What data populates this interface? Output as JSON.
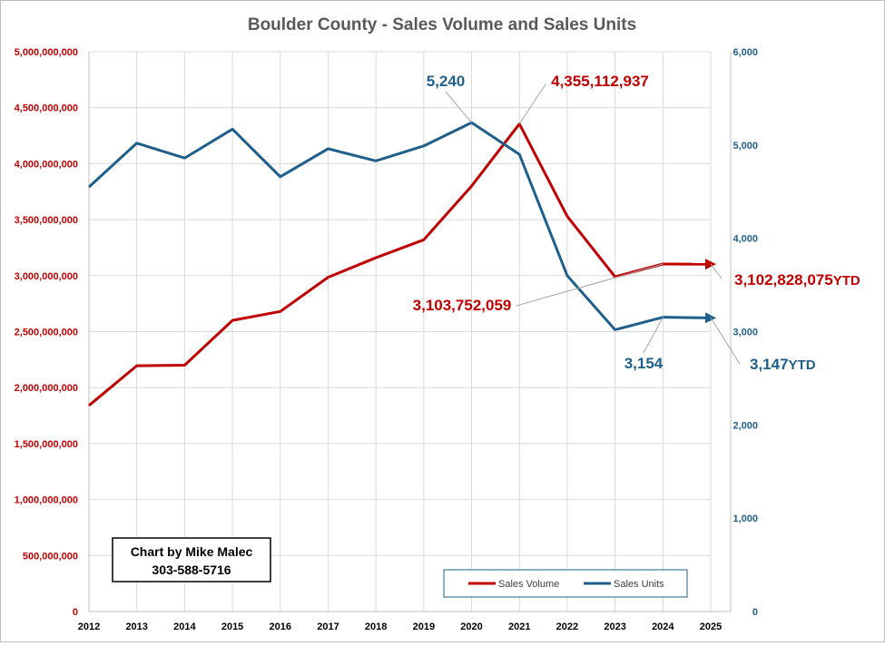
{
  "chart_data": {
    "type": "line",
    "title": "Boulder County - Sales Volume and Sales Units",
    "categories": [
      "2012",
      "2013",
      "2014",
      "2015",
      "2016",
      "2017",
      "2018",
      "2019",
      "2020",
      "2021",
      "2022",
      "2023",
      "2024",
      "2025"
    ],
    "left_axis": {
      "ylim": [
        0,
        5000000000
      ],
      "ticks": [
        0,
        500000000,
        1000000000,
        1500000000,
        2000000000,
        2500000000,
        3000000000,
        3500000000,
        4000000000,
        4500000000,
        5000000000
      ],
      "tick_labels": [
        "0",
        "500,000,000",
        "1,000,000,000",
        "1,500,000,000",
        "2,000,000,000",
        "2,500,000,000",
        "3,000,000,000",
        "3,500,000,000",
        "4,000,000,000",
        "4,500,000,000",
        "5,000,000,000"
      ],
      "color": "#c00000"
    },
    "right_axis": {
      "ylim": [
        0,
        6000
      ],
      "ticks": [
        0,
        1000,
        2000,
        3000,
        4000,
        5000,
        6000
      ],
      "tick_labels": [
        "0",
        "1,000",
        "2,000",
        "3,000",
        "4,000",
        "5,000",
        "6,000"
      ],
      "color": "#1f5f8b"
    },
    "series": [
      {
        "name": "Sales Volume",
        "axis": "left",
        "color": "#c00000",
        "values": [
          1840000000,
          2195000000,
          2200000000,
          2600000000,
          2680000000,
          2985000000,
          3160000000,
          3320000000,
          3800000000,
          4355112937,
          3530000000,
          2990000000,
          3103752059,
          3102828075
        ]
      },
      {
        "name": "Sales Units",
        "axis": "right",
        "color": "#1f5f8b",
        "values": [
          4550,
          5020,
          4860,
          5170,
          4660,
          4960,
          4830,
          4990,
          5240,
          4900,
          3600,
          3020,
          3154,
          3147
        ]
      }
    ],
    "annotations": [
      {
        "text": "5,240",
        "series": "Sales Units",
        "index": 8,
        "color": "blue"
      },
      {
        "text": "4,355,112,937",
        "series": "Sales Volume",
        "index": 9,
        "color": "red"
      },
      {
        "text": "3,103,752,059",
        "series": "Sales Volume",
        "index": 12,
        "color": "red"
      },
      {
        "text": "3,154",
        "series": "Sales Units",
        "index": 12,
        "color": "blue"
      },
      {
        "text": "3,102,828,075",
        "suffix": "YTD",
        "series": "Sales Volume",
        "index": 13,
        "color": "red"
      },
      {
        "text": "3,147",
        "suffix": "YTD",
        "series": "Sales Units",
        "index": 13,
        "color": "blue"
      }
    ],
    "legend": {
      "placement": "bottom-right",
      "items": [
        "Sales Volume",
        "Sales Units"
      ]
    },
    "credit": {
      "line1": "Chart by Mike Malec",
      "line2": "303-588-5716"
    },
    "grid": true
  }
}
